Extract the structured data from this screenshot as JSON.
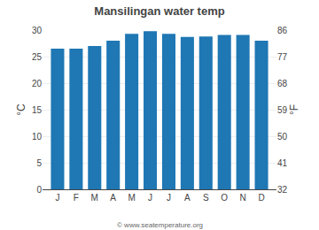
{
  "chart_data": {
    "type": "bar",
    "title": "Mansilingan water temp",
    "categories": [
      "J",
      "F",
      "M",
      "A",
      "M",
      "J",
      "J",
      "A",
      "S",
      "O",
      "N",
      "D"
    ],
    "values": [
      26.5,
      26.5,
      27.0,
      28.0,
      29.3,
      29.8,
      29.3,
      28.7,
      28.8,
      29.1,
      29.1,
      28.0
    ],
    "ylabel": "°C",
    "y2label": "°F",
    "ylim": [
      0,
      30
    ],
    "yticks": [
      0,
      5,
      10,
      15,
      20,
      25,
      30
    ],
    "y2lim": [
      32,
      86
    ],
    "y2ticks": [
      32,
      41,
      50,
      59,
      68,
      77,
      86
    ],
    "grid": true,
    "annotations": [
      "© www.seatemperature.org"
    ]
  }
}
